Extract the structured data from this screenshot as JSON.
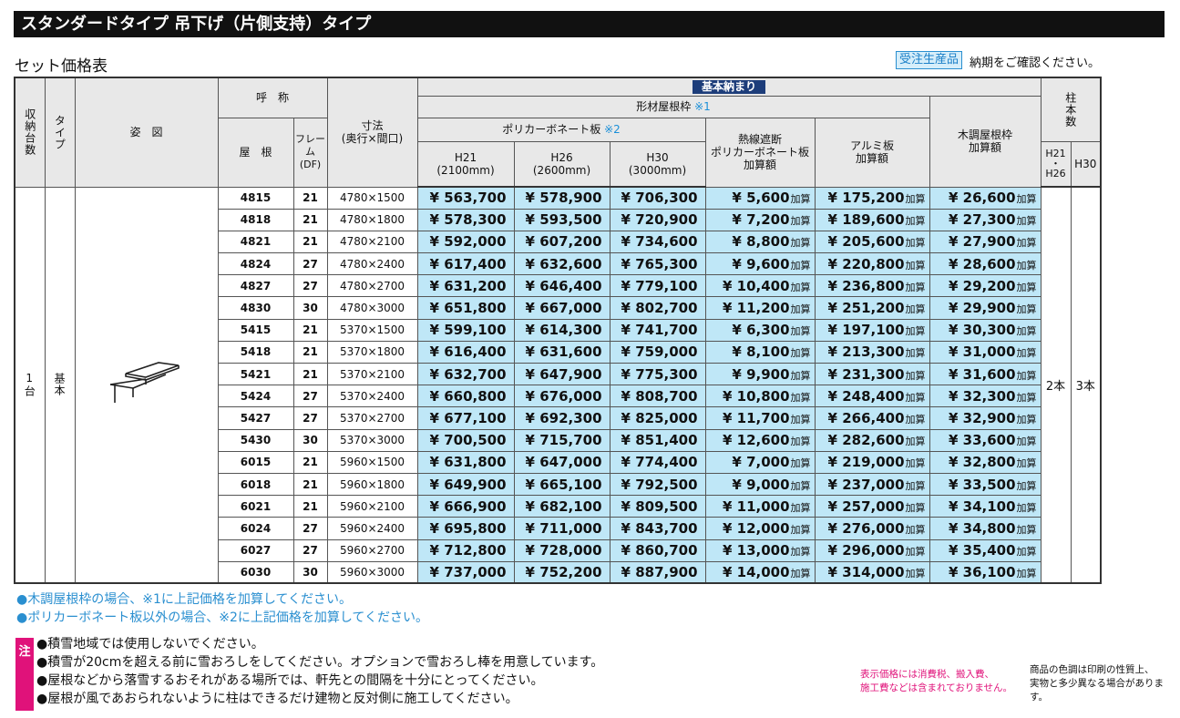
{
  "header": {
    "title": "スタンダードタイプ 吊下げ（片側支持）タイプ",
    "subtitle": "セット価格表",
    "badge": "受注生産品",
    "badge_note": "納期をご確認ください。"
  },
  "table": {
    "head": {
      "units": "収納台数",
      "type": "タイプ",
      "figure": "姿　図",
      "name": "呼　称",
      "roof": "屋　根",
      "frame": "フレーム\n(DF)",
      "size": "寸法\n(奥行×間口)",
      "basic": "基本納まり",
      "profile": "形材屋根枠",
      "profile_ref": "※1",
      "poly": "ポリカーボネート板",
      "poly_ref": "※2",
      "h21": "H21\n(2100mm)",
      "h26": "H26\n(2600mm)",
      "h30": "H30\n(3000mm)",
      "heat": "熱線遮断\nポリカーボネート板\n加算額",
      "alumi": "アルミ板\n加算額",
      "wood": "木調屋根枠\n加算額",
      "posts": "柱本数",
      "posts_a": "H21\n・\nH26",
      "posts_b": "H30"
    },
    "unit_value": "1台",
    "type_value": "基本",
    "posts_a_value": "2本",
    "posts_b_value": "3本",
    "add_suffix": "加算",
    "rows": [
      [
        "4815",
        "21",
        "4780×1500",
        "¥ 563,700",
        "¥ 578,900",
        "¥ 706,300",
        "¥ 5,600",
        "¥ 175,200",
        "¥ 26,600"
      ],
      [
        "4818",
        "21",
        "4780×1800",
        "¥ 578,300",
        "¥ 593,500",
        "¥ 720,900",
        "¥ 7,200",
        "¥ 189,600",
        "¥ 27,300"
      ],
      [
        "4821",
        "21",
        "4780×2100",
        "¥ 592,000",
        "¥ 607,200",
        "¥ 734,600",
        "¥ 8,800",
        "¥ 205,600",
        "¥ 27,900"
      ],
      [
        "4824",
        "27",
        "4780×2400",
        "¥ 617,400",
        "¥ 632,600",
        "¥ 765,300",
        "¥ 9,600",
        "¥ 220,800",
        "¥ 28,600"
      ],
      [
        "4827",
        "27",
        "4780×2700",
        "¥ 631,200",
        "¥ 646,400",
        "¥ 779,100",
        "¥ 10,400",
        "¥ 236,800",
        "¥ 29,200"
      ],
      [
        "4830",
        "30",
        "4780×3000",
        "¥ 651,800",
        "¥ 667,000",
        "¥ 802,700",
        "¥ 11,200",
        "¥ 251,200",
        "¥ 29,900"
      ],
      [
        "5415",
        "21",
        "5370×1500",
        "¥ 599,100",
        "¥ 614,300",
        "¥ 741,700",
        "¥ 6,300",
        "¥ 197,100",
        "¥ 30,300"
      ],
      [
        "5418",
        "21",
        "5370×1800",
        "¥ 616,400",
        "¥ 631,600",
        "¥ 759,000",
        "¥ 8,100",
        "¥ 213,300",
        "¥ 31,000"
      ],
      [
        "5421",
        "21",
        "5370×2100",
        "¥ 632,700",
        "¥ 647,900",
        "¥ 775,300",
        "¥ 9,900",
        "¥ 231,300",
        "¥ 31,600"
      ],
      [
        "5424",
        "27",
        "5370×2400",
        "¥ 660,800",
        "¥ 676,000",
        "¥ 808,700",
        "¥ 10,800",
        "¥ 248,400",
        "¥ 32,300"
      ],
      [
        "5427",
        "27",
        "5370×2700",
        "¥ 677,100",
        "¥ 692,300",
        "¥ 825,000",
        "¥ 11,700",
        "¥ 266,400",
        "¥ 32,900"
      ],
      [
        "5430",
        "30",
        "5370×3000",
        "¥ 700,500",
        "¥ 715,700",
        "¥ 851,400",
        "¥ 12,600",
        "¥ 282,600",
        "¥ 33,600"
      ],
      [
        "6015",
        "21",
        "5960×1500",
        "¥ 631,800",
        "¥ 647,000",
        "¥ 774,400",
        "¥ 7,000",
        "¥ 219,000",
        "¥ 32,800"
      ],
      [
        "6018",
        "21",
        "5960×1800",
        "¥ 649,900",
        "¥ 665,100",
        "¥ 792,500",
        "¥ 9,000",
        "¥ 237,000",
        "¥ 33,500"
      ],
      [
        "6021",
        "21",
        "5960×2100",
        "¥ 666,900",
        "¥ 682,100",
        "¥ 809,500",
        "¥ 11,000",
        "¥ 257,000",
        "¥ 34,100"
      ],
      [
        "6024",
        "27",
        "5960×2400",
        "¥ 695,800",
        "¥ 711,000",
        "¥ 843,700",
        "¥ 12,000",
        "¥ 276,000",
        "¥ 34,800"
      ],
      [
        "6027",
        "27",
        "5960×2700",
        "¥ 712,800",
        "¥ 728,000",
        "¥ 860,700",
        "¥ 13,000",
        "¥ 296,000",
        "¥ 35,400"
      ],
      [
        "6030",
        "30",
        "5960×3000",
        "¥ 737,000",
        "¥ 752,200",
        "¥ 887,900",
        "¥ 14,000",
        "¥ 314,000",
        "¥ 36,100"
      ]
    ]
  },
  "footnotes": [
    "●木調屋根枠の場合、※1に上記価格を加算してください。",
    "●ポリカーボネート板以外の場合、※2に上記価格を加算してください。"
  ],
  "caution": {
    "mark": "注",
    "items": [
      "●積雪地域では使用しないでください。",
      "●積雪が20cmを超える前に雪おろしをしてください。オプションで雪おろし棒を用意しています。",
      "●屋根などから落雪するおそれがある場所では、軒先との間隔を十分にとってください。",
      "●屋根が風であおられないように柱はできるだけ建物と反対側に施工してください。"
    ]
  },
  "side_notes": [
    "表示価格には消費税、搬入費、\n施工費などは含まれておりません。",
    "商品の色調は印刷の性質上、\n実物と多少異なる場合があります。"
  ]
}
